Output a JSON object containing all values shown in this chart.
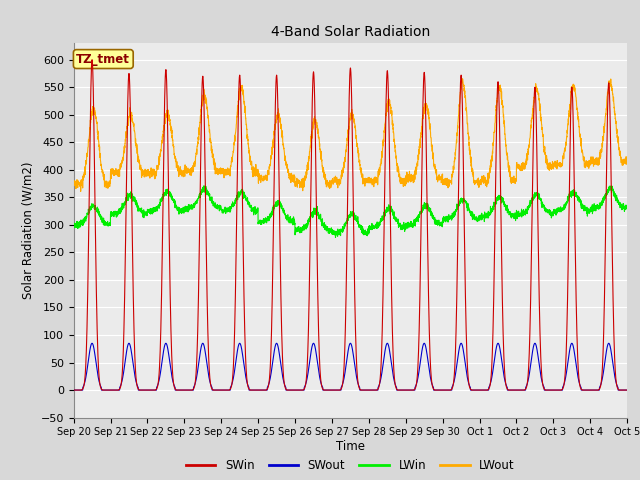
{
  "title": "4-Band Solar Radiation",
  "ylabel": "Solar Radiation (W/m2)",
  "xlabel": "Time",
  "annotation_label": "TZ_tmet",
  "ylim": [
    -50,
    630
  ],
  "x_tick_labels": [
    "Sep 20",
    "Sep 21",
    "Sep 22",
    "Sep 23",
    "Sep 24",
    "Sep 25",
    "Sep 26",
    "Sep 27",
    "Sep 28",
    "Sep 29",
    "Sep 30",
    "Oct 1",
    "Oct 2",
    "Oct 3",
    "Oct 4",
    "Oct 5"
  ],
  "colors": {
    "SWin": "#cc0000",
    "SWout": "#0000cc",
    "LWin": "#00ee00",
    "LWout": "#ffaa00"
  },
  "background_color": "#d8d8d8",
  "plot_bg_color": "#ebebeb",
  "grid_color": "#ffffff",
  "n_days": 15
}
